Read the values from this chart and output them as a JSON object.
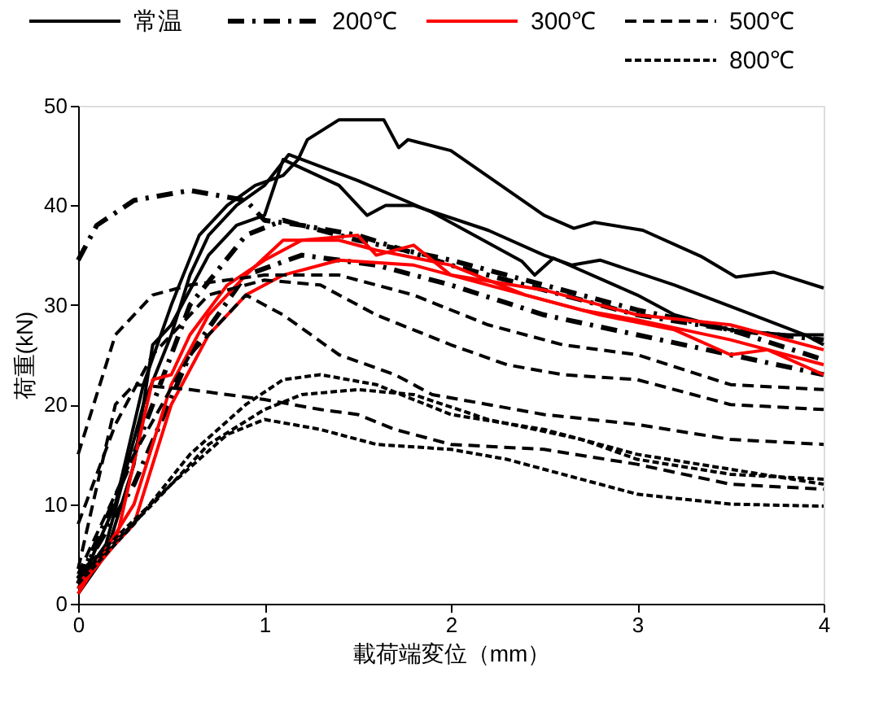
{
  "chart_data": {
    "type": "line",
    "xlabel": "載荷端変位（mm）",
    "ylabel": "荷重(kN)",
    "xlim": [
      0,
      4
    ],
    "xticks": [
      0,
      1,
      2,
      3,
      4
    ],
    "ylim": [
      0,
      50
    ],
    "yticks": [
      0,
      10,
      20,
      30,
      40,
      50
    ],
    "grid": false,
    "legend": "top",
    "marker": "none",
    "series": [
      {
        "name": "常温",
        "color": "#000000",
        "line_style": "solid",
        "x": [
          0,
          0.2,
          0.35,
          0.5,
          0.65,
          0.8,
          0.95,
          1.1,
          1.18,
          1.23,
          1.4,
          1.64,
          1.72,
          1.77,
          2.0,
          2.5,
          2.66,
          2.77,
          3.03,
          3.34,
          3.53,
          3.73,
          4.0
        ],
        "values": [
          1.5,
          10,
          22,
          30,
          37,
          40,
          42,
          43,
          44.6,
          46.6,
          48.6,
          48.6,
          45.8,
          46.6,
          45.5,
          39,
          37.7,
          38.3,
          37.5,
          34.9,
          32.8,
          33.3,
          31.7
        ]
      },
      {
        "color": "#000000",
        "line_style": "solid",
        "x": [
          0,
          0.15,
          0.35,
          0.5,
          0.6,
          0.7,
          0.85,
          1.0,
          1.13,
          1.5,
          1.9,
          2.38,
          2.45,
          2.55,
          3.0,
          3.2,
          3.5,
          3.8,
          4.0
        ],
        "values": [
          2,
          6,
          20,
          27,
          33,
          37,
          40,
          42,
          45.1,
          42.5,
          39.3,
          34.4,
          33,
          34.7,
          31,
          29,
          27.5,
          27,
          27
        ]
      },
      {
        "color": "#000000",
        "line_style": "solid",
        "x": [
          0,
          0.15,
          0.3,
          0.4,
          0.5,
          0.7,
          0.85,
          1.0,
          1.1,
          1.4,
          1.55,
          1.65,
          1.8,
          2.2,
          2.5,
          2.65,
          2.8,
          3.2,
          3.55,
          3.9,
          4.0
        ],
        "values": [
          1,
          5,
          14,
          26,
          28,
          35,
          38,
          39,
          44.6,
          42,
          39,
          40,
          40,
          37.5,
          35,
          34,
          34.5,
          32,
          29.5,
          27,
          26
        ]
      },
      {
        "name": "200℃",
        "color": "#000000",
        "line_style": "dashdot",
        "x": [
          0,
          0.1,
          0.3,
          0.6,
          0.9,
          1.0,
          1.2,
          1.5,
          2.0,
          2.5,
          3.0,
          3.5,
          4.0
        ],
        "values": [
          34.5,
          38,
          40.5,
          41.5,
          40.5,
          38.5,
          38,
          37,
          34,
          31.5,
          29,
          27.5,
          26.5
        ]
      },
      {
        "color": "#000000",
        "line_style": "dashdot",
        "x": [
          0,
          0.3,
          0.6,
          0.9,
          1.1,
          1.5,
          2.0,
          2.5,
          3.0,
          3.5,
          4.0
        ],
        "values": [
          2,
          15,
          30,
          37,
          38.5,
          36.5,
          34.5,
          32,
          29.5,
          27.5,
          24.5
        ]
      },
      {
        "color": "#000000",
        "line_style": "dashdot",
        "x": [
          0,
          0.3,
          0.6,
          0.9,
          1.2,
          1.6,
          2.0,
          2.5,
          3.0,
          3.5,
          4.0
        ],
        "values": [
          2.5,
          12,
          25,
          33,
          35,
          34,
          32,
          29,
          27,
          25,
          23
        ]
      },
      {
        "name": "300℃",
        "color": "#ff0000",
        "line_style": "solid",
        "x": [
          0,
          0.2,
          0.4,
          0.5,
          0.6,
          0.8,
          1.0,
          1.2,
          1.5,
          1.6,
          1.8,
          2.0,
          2.5,
          3.0,
          3.5,
          4.0
        ],
        "values": [
          1.5,
          6,
          22.5,
          23,
          27,
          32,
          34.5,
          36.5,
          37,
          35,
          36,
          33,
          31.5,
          29,
          28,
          25.5
        ]
      },
      {
        "color": "#ff0000",
        "line_style": "solid",
        "x": [
          0,
          0.3,
          0.5,
          0.7,
          0.9,
          1.1,
          1.4,
          1.6,
          2.0,
          2.4,
          2.8,
          3.2,
          3.5,
          3.7,
          4.0
        ],
        "values": [
          1,
          10,
          22,
          29,
          33,
          36.5,
          36.5,
          35.5,
          34,
          31,
          29,
          27.5,
          25,
          25.5,
          23
        ]
      },
      {
        "color": "#ff0000",
        "line_style": "solid",
        "x": [
          0,
          0.3,
          0.5,
          0.7,
          0.9,
          1.1,
          1.4,
          1.8,
          2.2,
          2.7,
          3.0,
          3.5,
          4.0
        ],
        "values": [
          2,
          8,
          20,
          27,
          31,
          33,
          34.5,
          34,
          32,
          29.5,
          28.5,
          26.5,
          24
        ]
      },
      {
        "name": "500℃",
        "color": "#000000",
        "line_style": "dashed",
        "x": [
          0,
          0.2,
          0.4,
          0.6,
          1.0,
          1.4,
          1.8,
          2.2,
          2.6,
          3.0,
          3.5,
          4.0
        ],
        "values": [
          15,
          27,
          31,
          32,
          33,
          33,
          31,
          28,
          26,
          25,
          22,
          21.5
        ]
      },
      {
        "color": "#000000",
        "line_style": "dashed",
        "x": [
          0,
          0.2,
          0.4,
          0.7,
          1.0,
          1.3,
          1.6,
          2.0,
          2.3,
          2.6,
          3.0,
          3.5,
          4.0
        ],
        "values": [
          8,
          18,
          25,
          31,
          32.5,
          32,
          29,
          26,
          24,
          23,
          22.5,
          20,
          19.5
        ]
      },
      {
        "color": "#000000",
        "line_style": "dashed",
        "x": [
          0,
          0.3,
          0.6,
          0.9,
          1.1,
          1.4,
          1.7,
          1.9,
          2.2,
          2.5,
          3.0,
          3.5,
          4.0
        ],
        "values": [
          3,
          15,
          25,
          31,
          29,
          25,
          23,
          21,
          20,
          19,
          18,
          16.5,
          16
        ]
      },
      {
        "color": "#000000",
        "line_style": "dashed",
        "x": [
          0,
          0.2,
          0.3,
          0.6,
          1.0,
          1.3,
          1.5,
          1.7,
          2.0,
          2.5,
          3.0,
          3.5,
          4.0
        ],
        "values": [
          3.5,
          20,
          22,
          21.5,
          20.5,
          19.5,
          19,
          17.5,
          16,
          15.5,
          14,
          12,
          11.5
        ]
      },
      {
        "name": "800℃",
        "color": "#000000",
        "line_style": "dotted",
        "x": [
          0,
          0.3,
          0.6,
          0.9,
          1.1,
          1.3,
          1.6,
          2.0,
          2.5,
          3.0,
          3.5,
          4.0
        ],
        "values": [
          2,
          8,
          15,
          20,
          22.5,
          23,
          22,
          19,
          17.5,
          15,
          13.5,
          12
        ]
      },
      {
        "color": "#000000",
        "line_style": "dotted",
        "x": [
          0,
          0.4,
          0.7,
          1.0,
          1.2,
          1.5,
          1.8,
          2.2,
          2.7,
          3.0,
          3.5,
          4.0
        ],
        "values": [
          2.5,
          10,
          16,
          19.5,
          21,
          21.5,
          21,
          18.5,
          16.5,
          14.5,
          13,
          12.5
        ]
      },
      {
        "color": "#000000",
        "line_style": "dotted",
        "x": [
          0,
          0.5,
          0.8,
          1.0,
          1.3,
          1.6,
          2.0,
          2.3,
          2.6,
          3.0,
          3.5,
          4.0
        ],
        "values": [
          3,
          12,
          17,
          18.5,
          17.5,
          16,
          15.5,
          14.5,
          13,
          11,
          10,
          9.8
        ]
      }
    ]
  }
}
